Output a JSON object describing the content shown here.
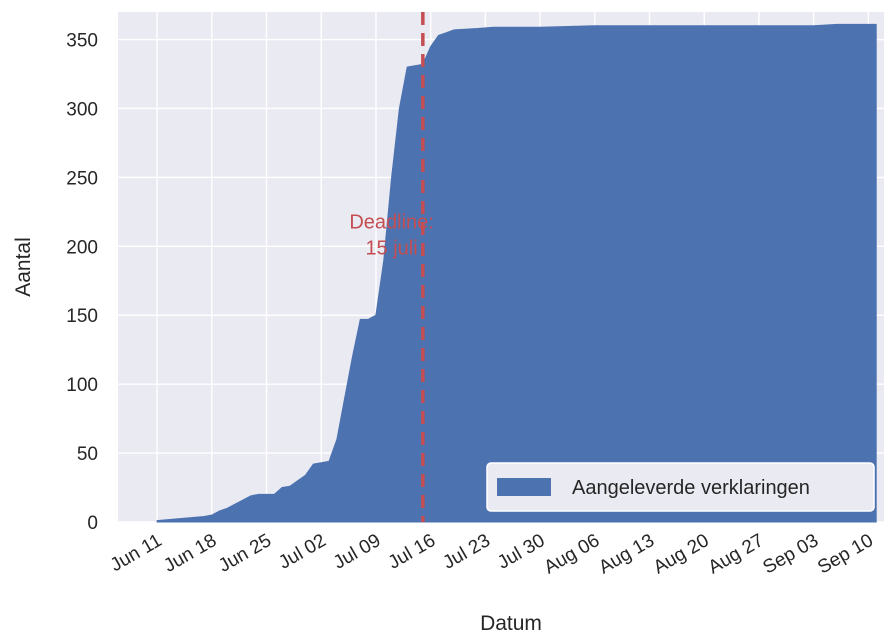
{
  "chart_data": {
    "type": "area",
    "xlabel": "Datum",
    "ylabel": "Aantal",
    "x_range": [
      "2018-06-06",
      "2018-09-12"
    ],
    "ylim": [
      0,
      370
    ],
    "grid": true,
    "background_color": "#eaeaf2",
    "area_color": "#4c72b0",
    "yticks": [
      0,
      50,
      100,
      150,
      200,
      250,
      300,
      350
    ],
    "xticks": [
      {
        "date": "2018-06-11",
        "label": "Jun 11"
      },
      {
        "date": "2018-06-18",
        "label": "Jun 18"
      },
      {
        "date": "2018-06-25",
        "label": "Jun 25"
      },
      {
        "date": "2018-07-02",
        "label": "Jul 02"
      },
      {
        "date": "2018-07-09",
        "label": "Jul 09"
      },
      {
        "date": "2018-07-16",
        "label": "Jul 16"
      },
      {
        "date": "2018-07-23",
        "label": "Jul 23"
      },
      {
        "date": "2018-07-30",
        "label": "Jul 30"
      },
      {
        "date": "2018-08-06",
        "label": "Aug 06"
      },
      {
        "date": "2018-08-13",
        "label": "Aug 13"
      },
      {
        "date": "2018-08-20",
        "label": "Aug 20"
      },
      {
        "date": "2018-08-27",
        "label": "Aug 27"
      },
      {
        "date": "2018-09-03",
        "label": "Sep 03"
      },
      {
        "date": "2018-09-10",
        "label": "Sep 10"
      }
    ],
    "series": [
      {
        "name": "Aangeleverde verklaringen",
        "points": [
          [
            "2018-06-11",
            0
          ],
          [
            "2018-06-11",
            1
          ],
          [
            "2018-06-13",
            2
          ],
          [
            "2018-06-15",
            3
          ],
          [
            "2018-06-17",
            4
          ],
          [
            "2018-06-18",
            5
          ],
          [
            "2018-06-19",
            8
          ],
          [
            "2018-06-20",
            10
          ],
          [
            "2018-06-21",
            13
          ],
          [
            "2018-06-22",
            16
          ],
          [
            "2018-06-23",
            19
          ],
          [
            "2018-06-24",
            20
          ],
          [
            "2018-06-26",
            20
          ],
          [
            "2018-06-27",
            25
          ],
          [
            "2018-06-28",
            26
          ],
          [
            "2018-06-29",
            30
          ],
          [
            "2018-06-30",
            34
          ],
          [
            "2018-07-01",
            42
          ],
          [
            "2018-07-02",
            43
          ],
          [
            "2018-07-03",
            44
          ],
          [
            "2018-07-04",
            60
          ],
          [
            "2018-07-05",
            90
          ],
          [
            "2018-07-06",
            120
          ],
          [
            "2018-07-07",
            147
          ],
          [
            "2018-07-08",
            147
          ],
          [
            "2018-07-09",
            150
          ],
          [
            "2018-07-10",
            190
          ],
          [
            "2018-07-11",
            250
          ],
          [
            "2018-07-12",
            300
          ],
          [
            "2018-07-13",
            330
          ],
          [
            "2018-07-14",
            331
          ],
          [
            "2018-07-15",
            332
          ],
          [
            "2018-07-16",
            345
          ],
          [
            "2018-07-17",
            353
          ],
          [
            "2018-07-18",
            355
          ],
          [
            "2018-07-19",
            357
          ],
          [
            "2018-07-22",
            358
          ],
          [
            "2018-07-24",
            359
          ],
          [
            "2018-07-30",
            359
          ],
          [
            "2018-08-06",
            360
          ],
          [
            "2018-08-20",
            360
          ],
          [
            "2018-09-03",
            360
          ],
          [
            "2018-09-06",
            361
          ],
          [
            "2018-09-11",
            361
          ],
          [
            "2018-09-11",
            0
          ]
        ]
      }
    ],
    "annotations": [
      {
        "type": "vline",
        "x": "2018-07-15",
        "color": "#c44e52",
        "style": "dashed"
      },
      {
        "type": "text",
        "x": "2018-07-11",
        "y": 210,
        "lines": [
          "Deadline:",
          "15 juli"
        ],
        "color": "#c44e52"
      }
    ],
    "legend": {
      "position": "lower-right",
      "entries": [
        "Aangeleverde verklaringen"
      ]
    }
  }
}
